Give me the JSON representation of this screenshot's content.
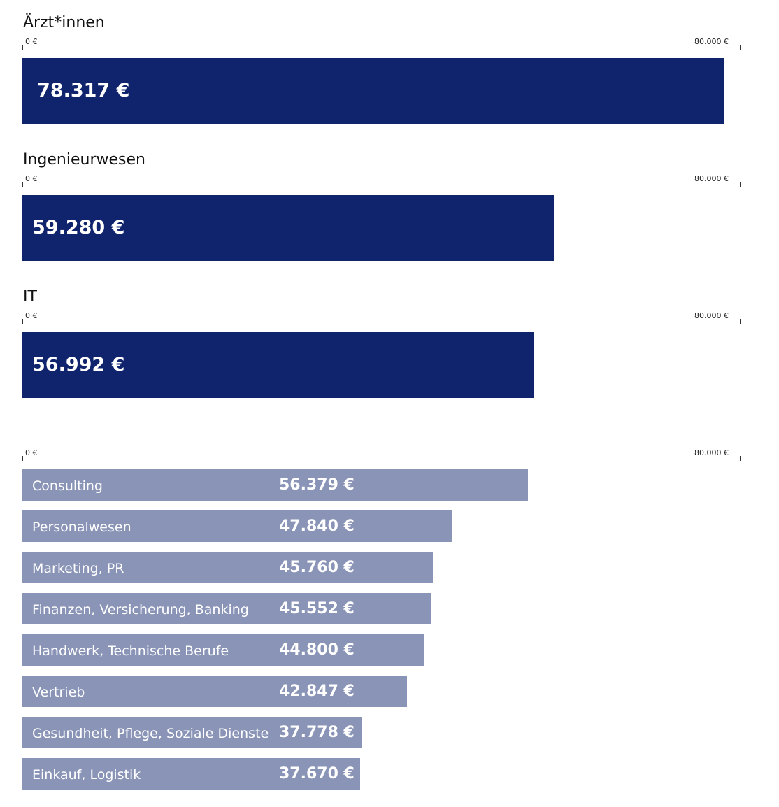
{
  "chart_data": [
    {
      "type": "bar",
      "orientation": "horizontal",
      "title": "Ärzt*innen",
      "axis": {
        "min_label": "0 €",
        "max_label": "80.000 €"
      },
      "xlim": [
        0,
        80000
      ],
      "categories": [
        "Ärzt*innen"
      ],
      "values": [
        78317
      ],
      "value_labels": [
        "78.317 €"
      ],
      "color": "#10246d"
    },
    {
      "type": "bar",
      "orientation": "horizontal",
      "title": "Ingenieurwesen",
      "axis": {
        "min_label": "0 €",
        "max_label": "80.000 €"
      },
      "xlim": [
        0,
        80000
      ],
      "categories": [
        "Ingenieurwesen"
      ],
      "values": [
        59280
      ],
      "value_labels": [
        "59.280 €"
      ],
      "color": "#10246d"
    },
    {
      "type": "bar",
      "orientation": "horizontal",
      "title": "IT",
      "axis": {
        "min_label": "0 €",
        "max_label": "80.000 €"
      },
      "xlim": [
        0,
        80000
      ],
      "categories": [
        "IT"
      ],
      "values": [
        56992
      ],
      "value_labels": [
        "56.992 €"
      ],
      "color": "#10246d"
    },
    {
      "type": "bar",
      "orientation": "horizontal",
      "title": "",
      "axis": {
        "min_label": "0 €",
        "max_label": "80.000 €"
      },
      "xlim": [
        0,
        80000
      ],
      "categories": [
        "Consulting",
        "Personalwesen",
        "Marketing, PR",
        "Finanzen, Versicherung, Banking",
        "Handwerk, Technische Berufe",
        "Vertrieb",
        "Gesundheit, Pflege, Soziale Dienste",
        "Einkauf, Logistik"
      ],
      "values": [
        56379,
        47840,
        45760,
        45552,
        44800,
        42847,
        37778,
        37670
      ],
      "value_labels": [
        "56.379 €",
        "47.840 €",
        "45.760 €",
        "45.552 €",
        "44.800 €",
        "42.847 €",
        "37.778 €",
        "37.670 €"
      ],
      "color": "#8a94b7"
    }
  ]
}
